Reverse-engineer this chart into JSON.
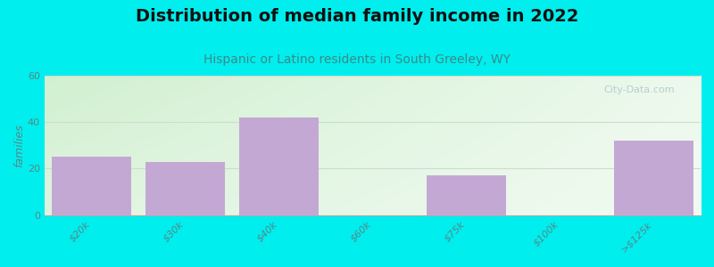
{
  "title": "Distribution of median family income in 2022",
  "subtitle": "Hispanic or Latino residents in South Greeley, WY",
  "categories": [
    "$20k",
    "$30k",
    "$40k",
    "$60k",
    "$75k",
    "$100k",
    ">$125k"
  ],
  "values": [
    25,
    23,
    42,
    0,
    17,
    0,
    32
  ],
  "bar_color": "#C4A8D4",
  "ylabel": "families",
  "ylim": [
    0,
    60
  ],
  "yticks": [
    0,
    20,
    40,
    60
  ],
  "bg_color": "#00EEEE",
  "plot_bg_left": "#d4edda",
  "plot_bg_right": "#f0f8f0",
  "plot_bg_top": "#e8f5e8",
  "plot_bg_bottom": "#f8fbf8",
  "title_fontsize": 14,
  "subtitle_fontsize": 10,
  "subtitle_color": "#3a8a8a",
  "tick_label_color": "#558888",
  "bar_width": 0.85,
  "watermark": "City-Data.com",
  "grid_color": "#ccddcc",
  "ylabel_color": "#558888"
}
